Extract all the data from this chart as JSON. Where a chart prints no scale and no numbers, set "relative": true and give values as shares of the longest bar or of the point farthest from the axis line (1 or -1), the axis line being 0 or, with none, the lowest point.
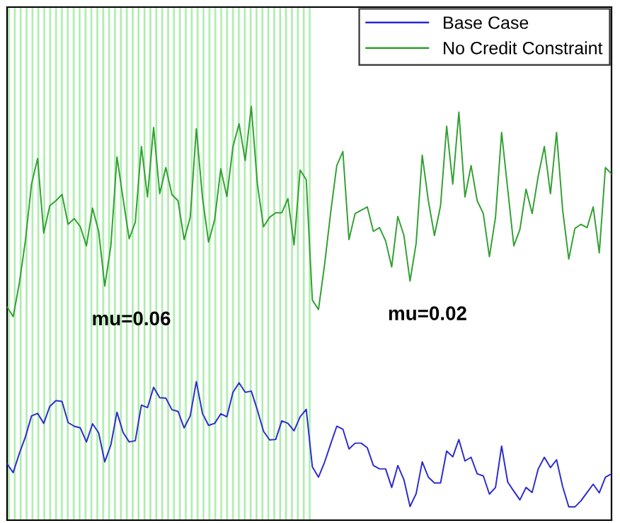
{
  "chart_data": {
    "type": "line",
    "relative": true,
    "categories": [
      null,
      null,
      null,
      null,
      null,
      null,
      null,
      null,
      null,
      null,
      null,
      null,
      null,
      null,
      null,
      null,
      null,
      null,
      null,
      null,
      null,
      null,
      null,
      null,
      null,
      null,
      null,
      null,
      null,
      null,
      null,
      null,
      null,
      null,
      null,
      null,
      null,
      null,
      null,
      null,
      null,
      null,
      null,
      null,
      null,
      null,
      null,
      null,
      null,
      null,
      null,
      null,
      null,
      null,
      null,
      null,
      null,
      null,
      null,
      null,
      null,
      null,
      null,
      null,
      null,
      null,
      null,
      null,
      null,
      null,
      null,
      null,
      null,
      null,
      null,
      null,
      null,
      null,
      null,
      null,
      null,
      null,
      null,
      null,
      null,
      null,
      null,
      null,
      null,
      null,
      null,
      null,
      null,
      null,
      null,
      null,
      null,
      null,
      null,
      null
    ],
    "legend": "top right",
    "series": [
      {
        "name": "Base Case",
        "color": "#2a2ad0",
        "values": [
          0.136,
          0.115,
          0.161,
          0.201,
          0.252,
          0.258,
          0.234,
          0.275,
          0.289,
          0.287,
          0.236,
          0.227,
          0.223,
          0.189,
          0.233,
          0.211,
          0.141,
          0.182,
          0.261,
          0.212,
          0.189,
          0.192,
          0.278,
          0.272,
          0.321,
          0.296,
          0.295,
          0.267,
          0.263,
          0.223,
          0.252,
          0.335,
          0.258,
          0.229,
          0.234,
          0.257,
          0.25,
          0.309,
          0.332,
          0.309,
          0.312,
          0.266,
          0.215,
          0.194,
          0.195,
          0.24,
          0.234,
          0.216,
          0.25,
          0.268,
          0.129,
          0.104,
          0.14,
          0.184,
          0.227,
          0.22,
          0.172,
          0.186,
          0.186,
          0.175,
          0.132,
          0.124,
          0.124,
          0.079,
          0.132,
          0.098,
          0.033,
          0.064,
          0.141,
          0.104,
          0.09,
          0.09,
          0.167,
          0.153,
          0.195,
          0.143,
          0.152,
          0.112,
          0.107,
          0.063,
          0.079,
          0.179,
          0.092,
          0.07,
          0.049,
          0.079,
          0.067,
          0.124,
          0.152,
          0.127,
          0.146,
          0.081,
          0.032,
          0.032,
          0.047,
          0.067,
          0.087,
          0.066,
          0.104,
          0.112
        ]
      },
      {
        "name": "No Credit Constraint",
        "color": "#30a030",
        "values": [
          0.515,
          0.492,
          0.572,
          0.675,
          0.812,
          0.874,
          0.694,
          0.76,
          0.772,
          0.787,
          0.715,
          0.729,
          0.709,
          0.663,
          0.754,
          0.698,
          0.566,
          0.663,
          0.878,
          0.777,
          0.68,
          0.72,
          0.903,
          0.781,
          0.949,
          0.789,
          0.852,
          0.787,
          0.772,
          0.678,
          0.732,
          0.946,
          0.78,
          0.672,
          0.726,
          0.849,
          0.782,
          0.903,
          0.958,
          0.869,
          1.0,
          0.812,
          0.709,
          0.732,
          0.743,
          0.743,
          0.777,
          0.665,
          0.846,
          0.823,
          0.532,
          0.509,
          0.617,
          0.743,
          0.857,
          0.891,
          0.678,
          0.741,
          0.749,
          0.757,
          0.698,
          0.707,
          0.675,
          0.612,
          0.734,
          0.688,
          0.578,
          0.669,
          0.882,
          0.772,
          0.688,
          0.76,
          0.952,
          0.812,
          0.986,
          0.781,
          0.857,
          0.772,
          0.741,
          0.637,
          0.732,
          0.937,
          0.8,
          0.663,
          0.703,
          0.8,
          0.741,
          0.832,
          0.903,
          0.789,
          0.937,
          0.749,
          0.631,
          0.705,
          0.715,
          0.707,
          0.757,
          0.646,
          0.852,
          0.837
        ]
      }
    ],
    "annotations": [
      "mu=0.06",
      "mu=0.02"
    ]
  }
}
